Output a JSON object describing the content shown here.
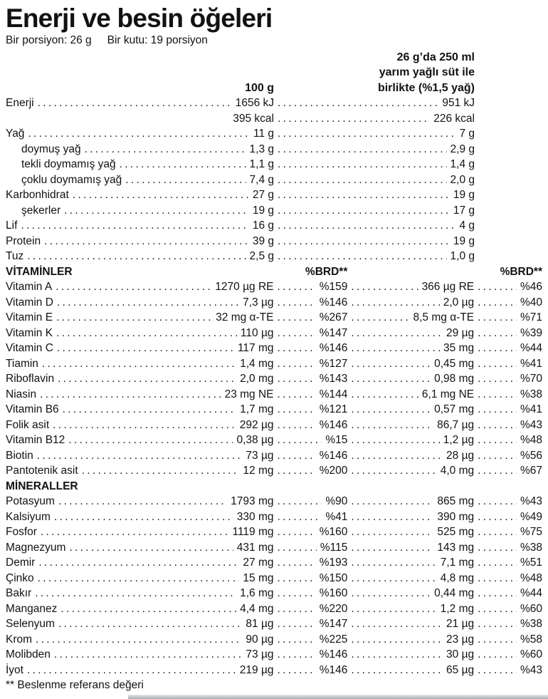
{
  "title": "Enerji ve besin öğeleri",
  "serving_info": {
    "portion": "Bir porsiyon: 26 g",
    "box": "Bir kutu: 19 porsiyon"
  },
  "columns": {
    "col1_header": "100 g",
    "col2_header_lines": [
      "26 g’da 250 ml",
      "yarım yağlı süt ile",
      "birlikte (%1,5 yağ)"
    ],
    "brd_header": "%BRD**"
  },
  "macros": [
    {
      "label": "Enerji",
      "v1": "1656 kJ",
      "v2": "951 kJ"
    },
    {
      "label": "",
      "v1": "395 kcal",
      "v2": "226 kcal",
      "no_leader": true
    },
    {
      "label": "Yağ",
      "v1": "11 g",
      "v2": "7 g"
    },
    {
      "label": "doymuş yağ",
      "indent": true,
      "v1": "1,3 g",
      "v2": "2,9 g"
    },
    {
      "label": "tekli doymamış yağ",
      "indent": true,
      "v1": "1,1 g",
      "v2": "1,4 g"
    },
    {
      "label": "çoklu doymamış yağ",
      "indent": true,
      "v1": "7,4 g",
      "v2": "2,0 g"
    },
    {
      "label": "Karbonhidrat",
      "v1": "27 g",
      "v2": "19 g"
    },
    {
      "label": "şekerler",
      "indent": true,
      "v1": "19 g",
      "v2": "17 g"
    },
    {
      "label": "Lif",
      "v1": "16 g",
      "v2": "4 g"
    },
    {
      "label": "Protein",
      "v1": "39 g",
      "v2": "19 g"
    },
    {
      "label": "Tuz",
      "v1": "2,5 g",
      "v2": "1,0 g"
    }
  ],
  "sections": [
    {
      "header": "VİTAMİNLER",
      "show_brd": true,
      "rows": [
        {
          "label": "Vitamin A",
          "v1": "1270 µg RE",
          "brd1": "%159",
          "v2": "366 µg RE",
          "brd2": "%46"
        },
        {
          "label": "Vitamin D",
          "v1": "7,3 µg",
          "brd1": "%146",
          "v2": "2,0 µg",
          "brd2": "%40"
        },
        {
          "label": "Vitamin E",
          "v1": "32 mg α-TE",
          "brd1": "%267",
          "v2": "8,5 mg α-TE",
          "brd2": "%71"
        },
        {
          "label": "Vitamin K",
          "v1": "110 µg",
          "brd1": "%147",
          "v2": "29 µg",
          "brd2": "%39"
        },
        {
          "label": "Vitamin C",
          "v1": "117 mg",
          "brd1": "%146",
          "v2": "35 mg",
          "brd2": "%44"
        },
        {
          "label": "Tiamin",
          "v1": "1,4 mg",
          "brd1": "%127",
          "v2": "0,45 mg",
          "brd2": "%41"
        },
        {
          "label": "Riboflavin",
          "v1": "2,0 mg",
          "brd1": "%143",
          "v2": "0,98 mg",
          "brd2": "%70"
        },
        {
          "label": "Niasin",
          "v1": "23 mg NE",
          "brd1": "%144",
          "v2": "6,1 mg NE",
          "brd2": "%38"
        },
        {
          "label": "Vitamin B6",
          "v1": "1,7 mg",
          "brd1": "%121",
          "v2": "0,57 mg",
          "brd2": "%41"
        },
        {
          "label": "Folik asit",
          "v1": "292 µg",
          "brd1": "%146",
          "v2": "86,7 µg",
          "brd2": "%43"
        },
        {
          "label": "Vitamin B12",
          "v1": "0,38 µg",
          "brd1": "%15",
          "v2": "1,2 µg",
          "brd2": "%48"
        },
        {
          "label": "Biotin",
          "v1": "73 µg",
          "brd1": "%146",
          "v2": "28 µg",
          "brd2": "%56"
        },
        {
          "label": "Pantotenik asit",
          "v1": "12 mg",
          "brd1": "%200",
          "v2": "4,0 mg",
          "brd2": "%67"
        }
      ]
    },
    {
      "header": "MİNERALLER",
      "show_brd": false,
      "rows": [
        {
          "label": "Potasyum",
          "v1": "1793 mg",
          "brd1": "%90",
          "v2": "865 mg",
          "brd2": "%43"
        },
        {
          "label": "Kalsiyum",
          "v1": "330 mg",
          "brd1": "%41",
          "v2": "390 mg",
          "brd2": "%49"
        },
        {
          "label": "Fosfor",
          "v1": "1119 mg",
          "brd1": "%160",
          "v2": "525 mg",
          "brd2": "%75"
        },
        {
          "label": "Magnezyum",
          "v1": "431 mg",
          "brd1": "%115",
          "v2": "143 mg",
          "brd2": "%38"
        },
        {
          "label": "Demir",
          "v1": "27 mg",
          "brd1": "%193",
          "v2": "7,1 mg",
          "brd2": "%51"
        },
        {
          "label": "Çinko",
          "v1": "15 mg",
          "brd1": "%150",
          "v2": "4,8 mg",
          "brd2": "%48"
        },
        {
          "label": "Bakır",
          "v1": "1,6 mg",
          "brd1": "%160",
          "v2": "0,44 mg",
          "brd2": "%44"
        },
        {
          "label": "Manganez",
          "v1": "4,4 mg",
          "brd1": "%220",
          "v2": "1,2 mg",
          "brd2": "%60"
        },
        {
          "label": "Selenyum",
          "v1": "81 µg",
          "brd1": "%147",
          "v2": "21 µg",
          "brd2": "%38"
        },
        {
          "label": "Krom",
          "v1": "90 µg",
          "brd1": "%225",
          "v2": "23 µg",
          "brd2": "%58"
        },
        {
          "label": "Molibden",
          "v1": "73 µg",
          "brd1": "%146",
          "v2": "30 µg",
          "brd2": "%60"
        },
        {
          "label": "İyot",
          "v1": "219 µg",
          "brd1": "%146",
          "v2": "65 µg",
          "brd2": "%43"
        }
      ]
    }
  ],
  "footnote": "** Beslenme referans değeri",
  "colors": {
    "text": "#121212",
    "background": "#ffffff",
    "bottom_bar": "#a9aeb3"
  }
}
